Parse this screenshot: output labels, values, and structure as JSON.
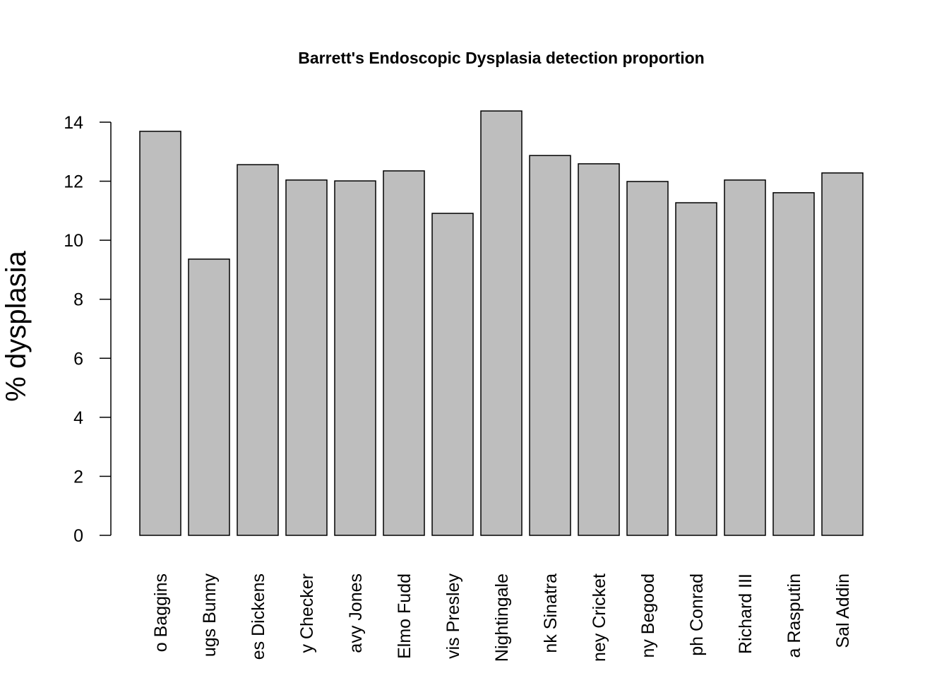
{
  "chart_data": {
    "type": "bar",
    "title": "Barrett's Endoscopic Dysplasia detection proportion",
    "y_label": "% dysplasia",
    "categories": [
      "o Baggins",
      "ugs Bunny",
      "es Dickens",
      "y Checker",
      "avy Jones",
      "Elmo Fudd",
      "vis Presley",
      "Nightingale",
      "nk Sinatra",
      "ney Cricket",
      "ny Begood",
      "ph Conrad",
      "Richard III",
      "a Rasputin",
      "Sal Addin"
    ],
    "values": [
      13.69,
      9.36,
      12.56,
      12.04,
      12.01,
      12.35,
      10.91,
      14.38,
      12.87,
      12.59,
      11.99,
      11.27,
      12.04,
      11.61,
      12.28
    ],
    "color": "#bebebe",
    "ylim": [
      0,
      14
    ],
    "yticks": [
      0,
      2,
      4,
      6,
      8,
      10,
      12,
      14
    ],
    "grid": false
  }
}
